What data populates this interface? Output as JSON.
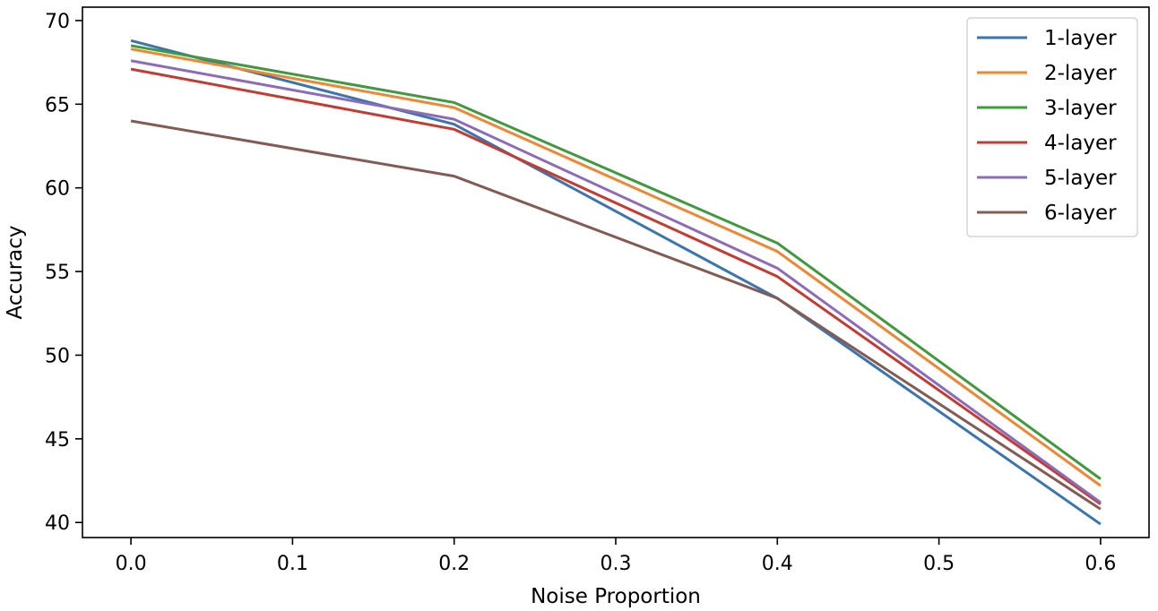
{
  "chart_data": {
    "type": "line",
    "title": "",
    "xlabel": "Noise Proportion",
    "ylabel": "Accuracy",
    "x": [
      0.0,
      0.2,
      0.4,
      0.6
    ],
    "xlim": [
      -0.03,
      0.63
    ],
    "ylim": [
      39.1,
      70.8
    ],
    "xticks": [
      0.0,
      0.1,
      0.2,
      0.3,
      0.4,
      0.5,
      0.6
    ],
    "xtick_labels": [
      "0.0",
      "0.1",
      "0.2",
      "0.3",
      "0.4",
      "0.5",
      "0.6"
    ],
    "yticks": [
      40,
      45,
      50,
      55,
      60,
      65,
      70
    ],
    "ytick_labels": [
      "40",
      "45",
      "50",
      "55",
      "60",
      "65",
      "70"
    ],
    "grid": false,
    "legend_position": "top-right",
    "series": [
      {
        "name": "1-layer",
        "color": "#3a75b0",
        "values": [
          68.8,
          63.8,
          53.4,
          39.9
        ]
      },
      {
        "name": "2-layer",
        "color": "#ef8636",
        "values": [
          68.3,
          64.8,
          56.2,
          42.2
        ]
      },
      {
        "name": "3-layer",
        "color": "#3f9a3c",
        "values": [
          68.5,
          65.1,
          56.7,
          42.6
        ]
      },
      {
        "name": "4-layer",
        "color": "#c53a32",
        "values": [
          67.1,
          63.5,
          54.7,
          41.1
        ]
      },
      {
        "name": "5-layer",
        "color": "#8d6bb8",
        "values": [
          67.6,
          64.1,
          55.2,
          41.2
        ]
      },
      {
        "name": "6-layer",
        "color": "#845b53",
        "values": [
          64.0,
          60.7,
          53.4,
          40.8
        ]
      }
    ]
  }
}
